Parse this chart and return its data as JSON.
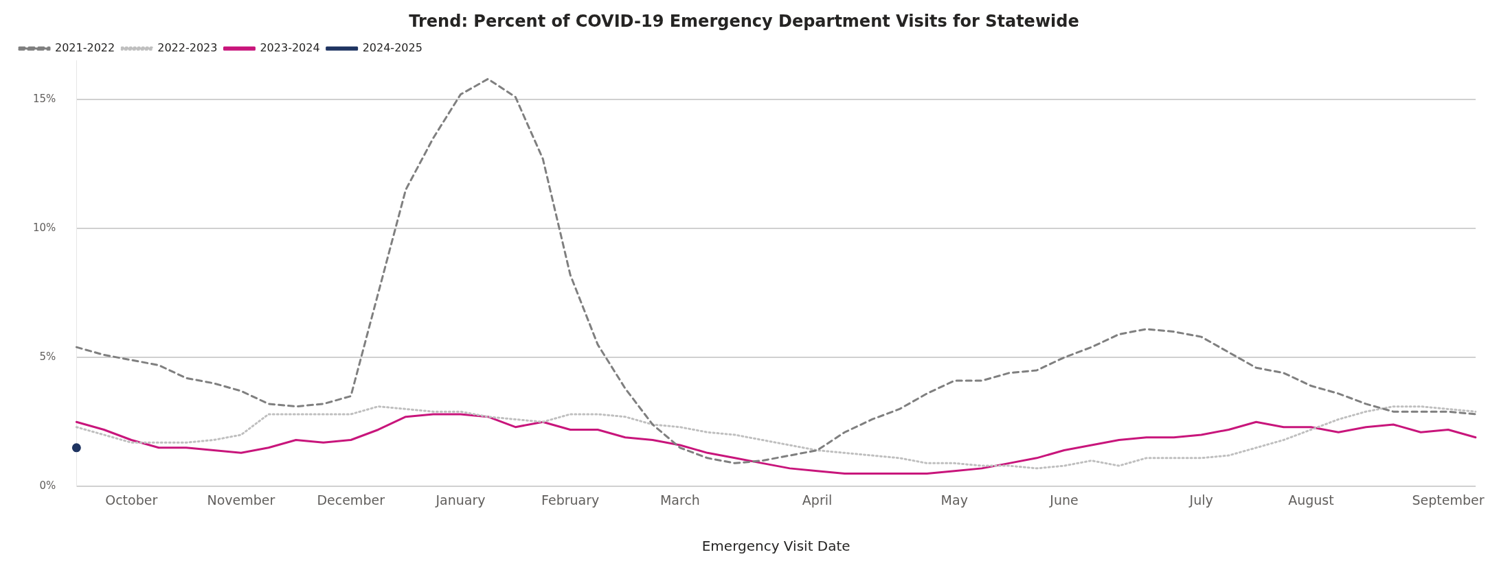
{
  "chart_data": {
    "type": "line",
    "title": "Trend: Percent of COVID-19 Emergency Department Visits for Statewide",
    "xlabel": "Emergency Visit Date",
    "categories": [
      null,
      null,
      "October",
      null,
      null,
      null,
      "November",
      null,
      null,
      null,
      "December",
      null,
      null,
      null,
      "January",
      null,
      null,
      null,
      "February",
      null,
      null,
      null,
      "March",
      null,
      null,
      null,
      null,
      "April",
      null,
      null,
      null,
      null,
      "May",
      null,
      null,
      null,
      "June",
      null,
      null,
      null,
      null,
      "July",
      null,
      null,
      null,
      "August",
      null,
      null,
      null,
      null,
      "September",
      null
    ],
    "series": [
      {
        "name": "2021-2022",
        "color": "#7f7f7f",
        "line_style": "dashed",
        "marker": "none",
        "values": [
          5.4,
          5.1,
          4.9,
          4.7,
          4.2,
          4.0,
          3.7,
          3.2,
          3.1,
          3.2,
          3.5,
          7.5,
          11.5,
          13.5,
          15.2,
          15.8,
          15.1,
          12.7,
          8.2,
          5.5,
          3.8,
          2.4,
          1.5,
          1.1,
          0.9,
          1.0,
          1.2,
          1.4,
          2.1,
          2.6,
          3.0,
          3.6,
          4.1,
          4.1,
          4.4,
          4.5,
          5.0,
          5.4,
          5.9,
          6.1,
          6.0,
          5.8,
          5.2,
          4.6,
          4.4,
          3.9,
          3.6,
          3.2,
          2.9,
          2.9,
          2.9,
          2.8
        ]
      },
      {
        "name": "2022-2023",
        "color": "#bfbfbf",
        "line_style": "dotted",
        "marker": "none",
        "values": [
          2.3,
          2.0,
          1.7,
          1.7,
          1.7,
          1.8,
          2.0,
          2.8,
          2.8,
          2.8,
          2.8,
          3.1,
          3.0,
          2.9,
          2.9,
          2.7,
          2.6,
          2.5,
          2.8,
          2.8,
          2.7,
          2.4,
          2.3,
          2.1,
          2.0,
          1.8,
          1.6,
          1.4,
          1.3,
          1.2,
          1.1,
          0.9,
          0.9,
          0.8,
          0.8,
          0.7,
          0.8,
          1.0,
          0.8,
          1.1,
          1.1,
          1.1,
          1.2,
          1.5,
          1.8,
          2.2,
          2.6,
          2.9,
          3.1,
          3.1,
          3.0,
          2.9
        ]
      },
      {
        "name": "2023-2024",
        "color": "#c8157b",
        "line_style": "solid",
        "marker": "none",
        "values": [
          2.5,
          2.2,
          1.8,
          1.5,
          1.5,
          1.4,
          1.3,
          1.5,
          1.8,
          1.7,
          1.8,
          2.2,
          2.7,
          2.8,
          2.8,
          2.7,
          2.3,
          2.5,
          2.2,
          2.2,
          1.9,
          1.8,
          1.6,
          1.3,
          1.1,
          0.9,
          0.7,
          0.6,
          0.5,
          0.5,
          0.5,
          0.5,
          0.6,
          0.7,
          0.9,
          1.1,
          1.4,
          1.6,
          1.8,
          1.9,
          1.9,
          2.0,
          2.2,
          2.5,
          2.3,
          2.3,
          2.1,
          2.3,
          2.4,
          2.1,
          2.2,
          1.9
        ]
      },
      {
        "name": "2024-2025",
        "color": "#1f3461",
        "line_style": "solid",
        "marker": "circle",
        "values": [
          1.5,
          null,
          null,
          null,
          null,
          null,
          null,
          null,
          null,
          null,
          null,
          null,
          null,
          null,
          null,
          null,
          null,
          null,
          null,
          null,
          null,
          null,
          null,
          null,
          null,
          null,
          null,
          null,
          null,
          null,
          null,
          null,
          null,
          null,
          null,
          null,
          null,
          null,
          null,
          null,
          null,
          null,
          null,
          null,
          null,
          null,
          null,
          null,
          null,
          null,
          null,
          null
        ]
      }
    ],
    "ylim": [
      0,
      16.5
    ],
    "yticks": [
      {
        "value": 0,
        "label": "0%"
      },
      {
        "value": 5,
        "label": "5%"
      },
      {
        "value": 10,
        "label": "10%"
      },
      {
        "value": 15,
        "label": "15%"
      }
    ],
    "grid": "y",
    "legend": "top left"
  }
}
